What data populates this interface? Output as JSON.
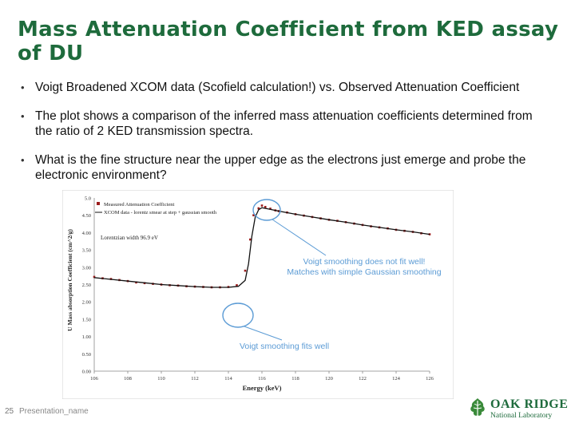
{
  "slide": {
    "title": "Mass Attenuation Coefficient from KED assay of DU",
    "bullets": [
      "Voigt Broadened XCOM data (Scofield calculation!) vs. Observed Attenuation Coefficient",
      "The plot shows  a comparison of the inferred mass attenuation coefficients determined from the ratio of 2 KED transmission spectra.",
      "What is the fine structure near the upper edge as the electrons just emerge and probe the electronic environment?"
    ],
    "bullet_glyph": "•"
  },
  "annotations": {
    "upper_line1": "Voigt smoothing does not fit well!",
    "upper_line2": "Matches with simple Gaussian smoothing",
    "lower": "Voigt smoothing fits well",
    "color": "#5b9bd5"
  },
  "chart_data": {
    "type": "scatter",
    "ylabel": "U Mass absorption Coefficient (cm^2/g)",
    "xlabel": "Energy (keV)",
    "xlim": [
      106,
      126
    ],
    "ylim": [
      0,
      5.0
    ],
    "x_ticks": [
      "106",
      "108",
      "110",
      "112",
      "114",
      "116",
      "118",
      "120",
      "122",
      "124",
      "126"
    ],
    "y_ticks": [
      "0.00",
      "0.50",
      "1.00",
      "1.50",
      "2.00",
      "2.50",
      "3.00",
      "3.50",
      "4.00",
      "4.50",
      "5.0"
    ],
    "legend": [
      "Measured Attenuation Coefficient",
      "XCOM data - lorentz smear at step + gaussian smooth"
    ],
    "legend_position": "top-left",
    "annotation": "Lorentzian width     96.9 eV",
    "series": [
      {
        "name": "Measured Attenuation Coefficient",
        "style": "markers",
        "color": "#9b1c1c",
        "x": [
          106.0,
          106.5,
          107.0,
          107.5,
          108.0,
          108.5,
          109.0,
          109.5,
          110.0,
          110.5,
          111.0,
          111.5,
          112.0,
          112.5,
          113.0,
          113.5,
          114.0,
          114.5,
          115.0,
          115.3,
          115.5,
          115.8,
          116.0,
          116.2,
          116.5,
          116.8,
          117.0,
          117.5,
          118.0,
          118.5,
          119.0,
          119.5,
          120.0,
          120.5,
          121.0,
          121.5,
          122.0,
          122.5,
          123.0,
          123.5,
          124.0,
          124.5,
          125.0,
          125.5,
          126.0
        ],
        "y": [
          2.72,
          2.68,
          2.66,
          2.63,
          2.6,
          2.56,
          2.54,
          2.52,
          2.5,
          2.48,
          2.47,
          2.45,
          2.44,
          2.43,
          2.42,
          2.42,
          2.43,
          2.48,
          2.9,
          3.8,
          4.5,
          4.7,
          4.78,
          4.74,
          4.69,
          4.64,
          4.62,
          4.58,
          4.53,
          4.49,
          4.45,
          4.41,
          4.37,
          4.34,
          4.3,
          4.26,
          4.22,
          4.18,
          4.15,
          4.12,
          4.08,
          4.05,
          4.02,
          3.98,
          3.95
        ]
      },
      {
        "name": "XCOM data - lorentz smear at step + gaussian smooth",
        "style": "line",
        "color": "#111111",
        "x": [
          106.0,
          107.0,
          108.0,
          109.0,
          110.0,
          111.0,
          112.0,
          113.0,
          114.0,
          114.6,
          115.0,
          115.2,
          115.4,
          115.6,
          115.8,
          116.0,
          116.4,
          117.0,
          118.0,
          119.0,
          120.0,
          121.0,
          122.0,
          123.0,
          124.0,
          125.0,
          126.0
        ],
        "y": [
          2.7,
          2.65,
          2.6,
          2.55,
          2.5,
          2.47,
          2.44,
          2.42,
          2.42,
          2.45,
          2.62,
          3.1,
          3.9,
          4.45,
          4.66,
          4.72,
          4.68,
          4.62,
          4.53,
          4.45,
          4.37,
          4.3,
          4.22,
          4.15,
          4.08,
          4.02,
          3.95
        ]
      }
    ]
  },
  "footer": {
    "page_number": "25",
    "presentation_name": "Presentation_name",
    "logo_line1": "OAK RIDGE",
    "logo_line2": "National Laboratory"
  }
}
